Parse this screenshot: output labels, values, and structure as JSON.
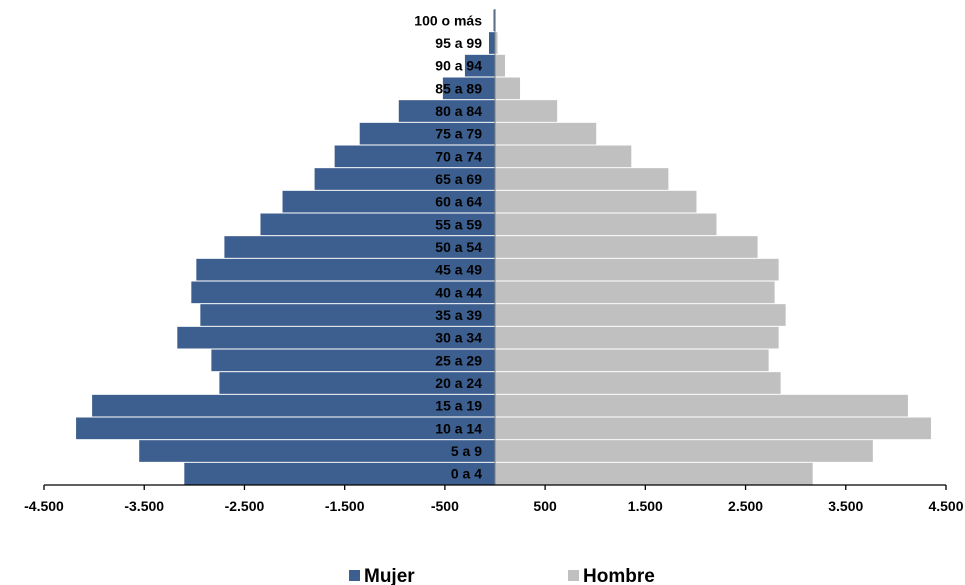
{
  "chart_data": {
    "type": "bar",
    "orientation": "horizontal",
    "stacked": true,
    "title": "",
    "xlabel": "",
    "ylabel": "",
    "categories": [
      "0 a 4",
      "5 a 9",
      "10 a 14",
      "15 a 19",
      "20 a 24",
      "25 a 29",
      "30 a 34",
      "35 a 39",
      "40 a 44",
      "45 a 49",
      "50 a 54",
      "55 a 59",
      "60 a 64",
      "65 a 69",
      "70 a 74",
      "75 a 79",
      "80 a 84",
      "85 a 89",
      "90 a 94",
      "95 a 99",
      "100 o más"
    ],
    "series": [
      {
        "name": "Mujer",
        "color": "#3d5f8f",
        "values": [
          -3100,
          -3550,
          -4180,
          -4020,
          -2750,
          -2830,
          -3170,
          -2940,
          -3030,
          -2980,
          -2700,
          -2340,
          -2120,
          -1800,
          -1600,
          -1350,
          -960,
          -520,
          -300,
          -60,
          -15
        ]
      },
      {
        "name": "Hombre",
        "color": "#c0c0c0",
        "values": [
          3170,
          3770,
          4350,
          4120,
          2850,
          2730,
          2830,
          2900,
          2790,
          2830,
          2620,
          2210,
          2010,
          1730,
          1360,
          1010,
          620,
          250,
          100,
          25,
          5
        ]
      }
    ],
    "xlim": [
      -4500,
      4500
    ],
    "xticks": [
      -4500,
      -3500,
      -2500,
      -1500,
      -500,
      500,
      1500,
      2500,
      3500,
      4500
    ],
    "xtick_labels": [
      "-4.500",
      "-3.500",
      "-2.500",
      "-1.500",
      "-500",
      "500",
      "1.500",
      "2.500",
      "3.500",
      "4.500"
    ],
    "grid": false,
    "legend_position": "bottom"
  }
}
